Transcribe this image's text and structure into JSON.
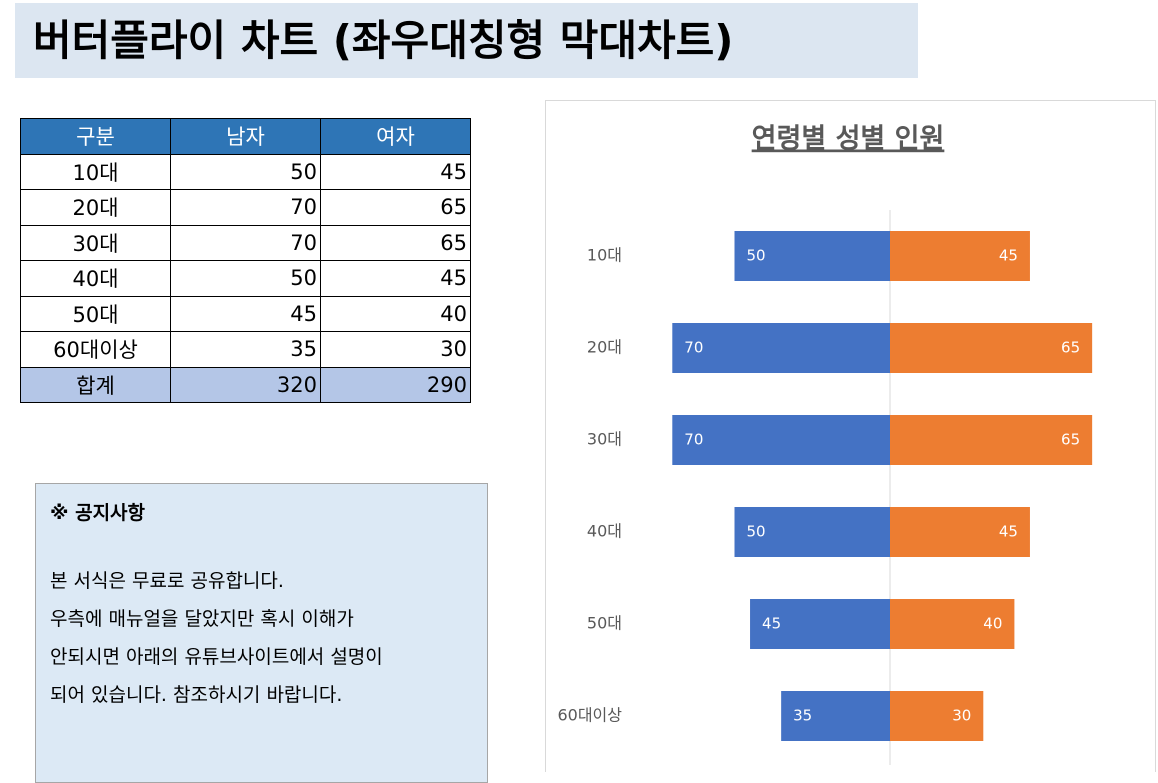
{
  "header": {
    "title": "버터플라이 차트 (좌우대칭형 막대차트)"
  },
  "table": {
    "columns": [
      "구분",
      "남자",
      "여자"
    ],
    "rows": [
      [
        "10대",
        50,
        45
      ],
      [
        "20대",
        70,
        65
      ],
      [
        "30대",
        70,
        65
      ],
      [
        "40대",
        50,
        45
      ],
      [
        "50대",
        45,
        40
      ],
      [
        "60대이상",
        35,
        30
      ],
      [
        "합계",
        320,
        290
      ]
    ]
  },
  "notice": {
    "title": "※ 공지사항",
    "lines": [
      "본 서식은 무료로 공유합니다.",
      "우측에 매뉴얼을 달았지만 혹시 이해가",
      "안되시면 아래의 유튜브사이트에서 설명이",
      "되어 있습니다. 참조하시기 바랍니다."
    ]
  },
  "chart_data": {
    "type": "butterfly",
    "title": "연령별 성별 인원",
    "categories": [
      "10대",
      "20대",
      "30대",
      "40대",
      "50대",
      "60대이상"
    ],
    "series": [
      {
        "color": "#4472c4",
        "values": [
          50,
          70,
          70,
          50,
          45,
          35
        ]
      },
      {
        "color": "#ed7d31",
        "values": [
          45,
          65,
          65,
          45,
          40,
          30
        ]
      }
    ],
    "xlim": [
      0,
      100
    ]
  }
}
